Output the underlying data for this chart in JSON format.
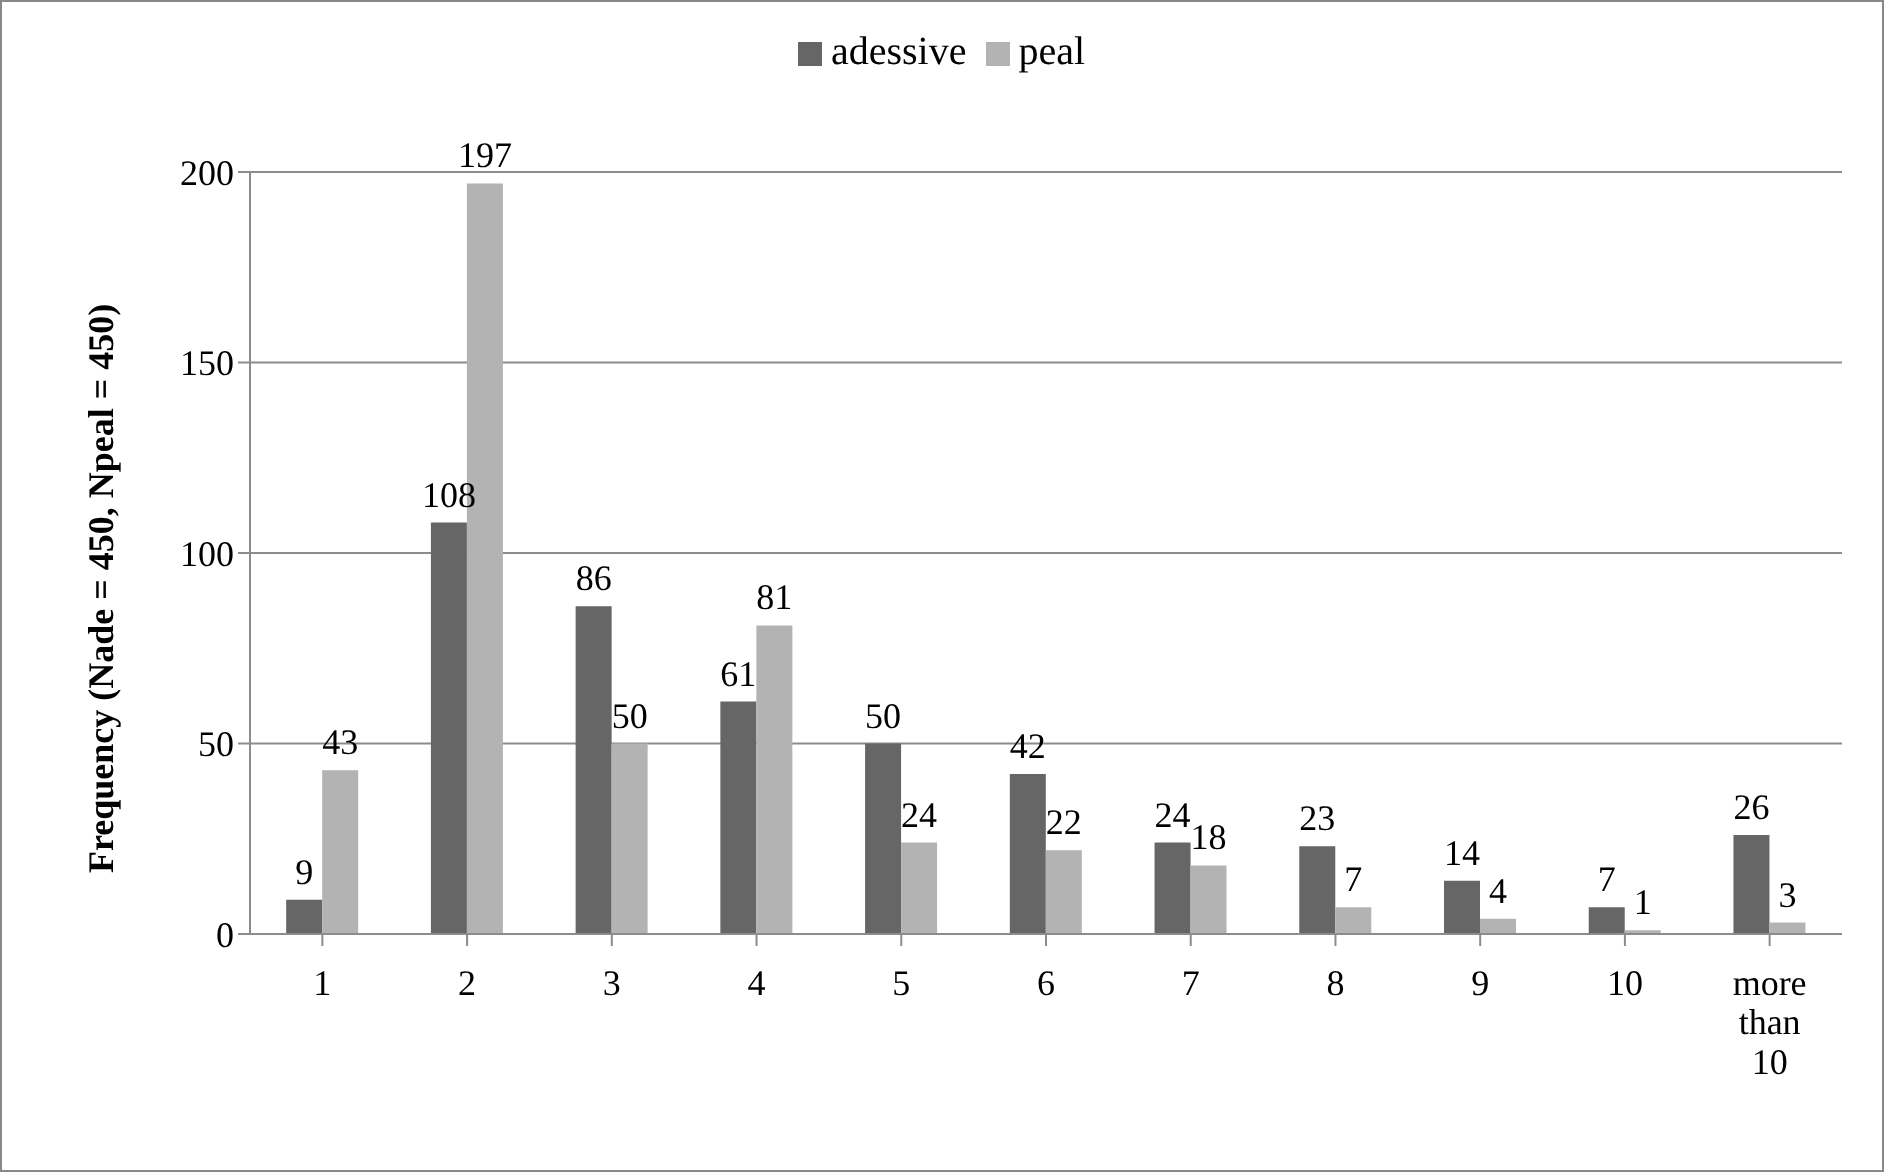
{
  "chart_data": {
    "type": "bar",
    "ylabel": "Frequency (Nade = 450, Npeal = 450)",
    "categories": [
      "1",
      "2",
      "3",
      "4",
      "5",
      "6",
      "7",
      "8",
      "9",
      "10",
      "more than 10"
    ],
    "series": [
      {
        "name": "adessive",
        "color": "#666666",
        "values": [
          9,
          108,
          86,
          61,
          50,
          42,
          24,
          23,
          14,
          7,
          26
        ]
      },
      {
        "name": "peal",
        "color": "#b3b3b3",
        "values": [
          43,
          197,
          50,
          81,
          24,
          22,
          18,
          7,
          4,
          1,
          3
        ]
      }
    ],
    "ylim": [
      0,
      200
    ],
    "yticks": [
      0,
      50,
      100,
      150,
      200
    ],
    "grid": "y",
    "legend": "top",
    "data_labels": true
  }
}
